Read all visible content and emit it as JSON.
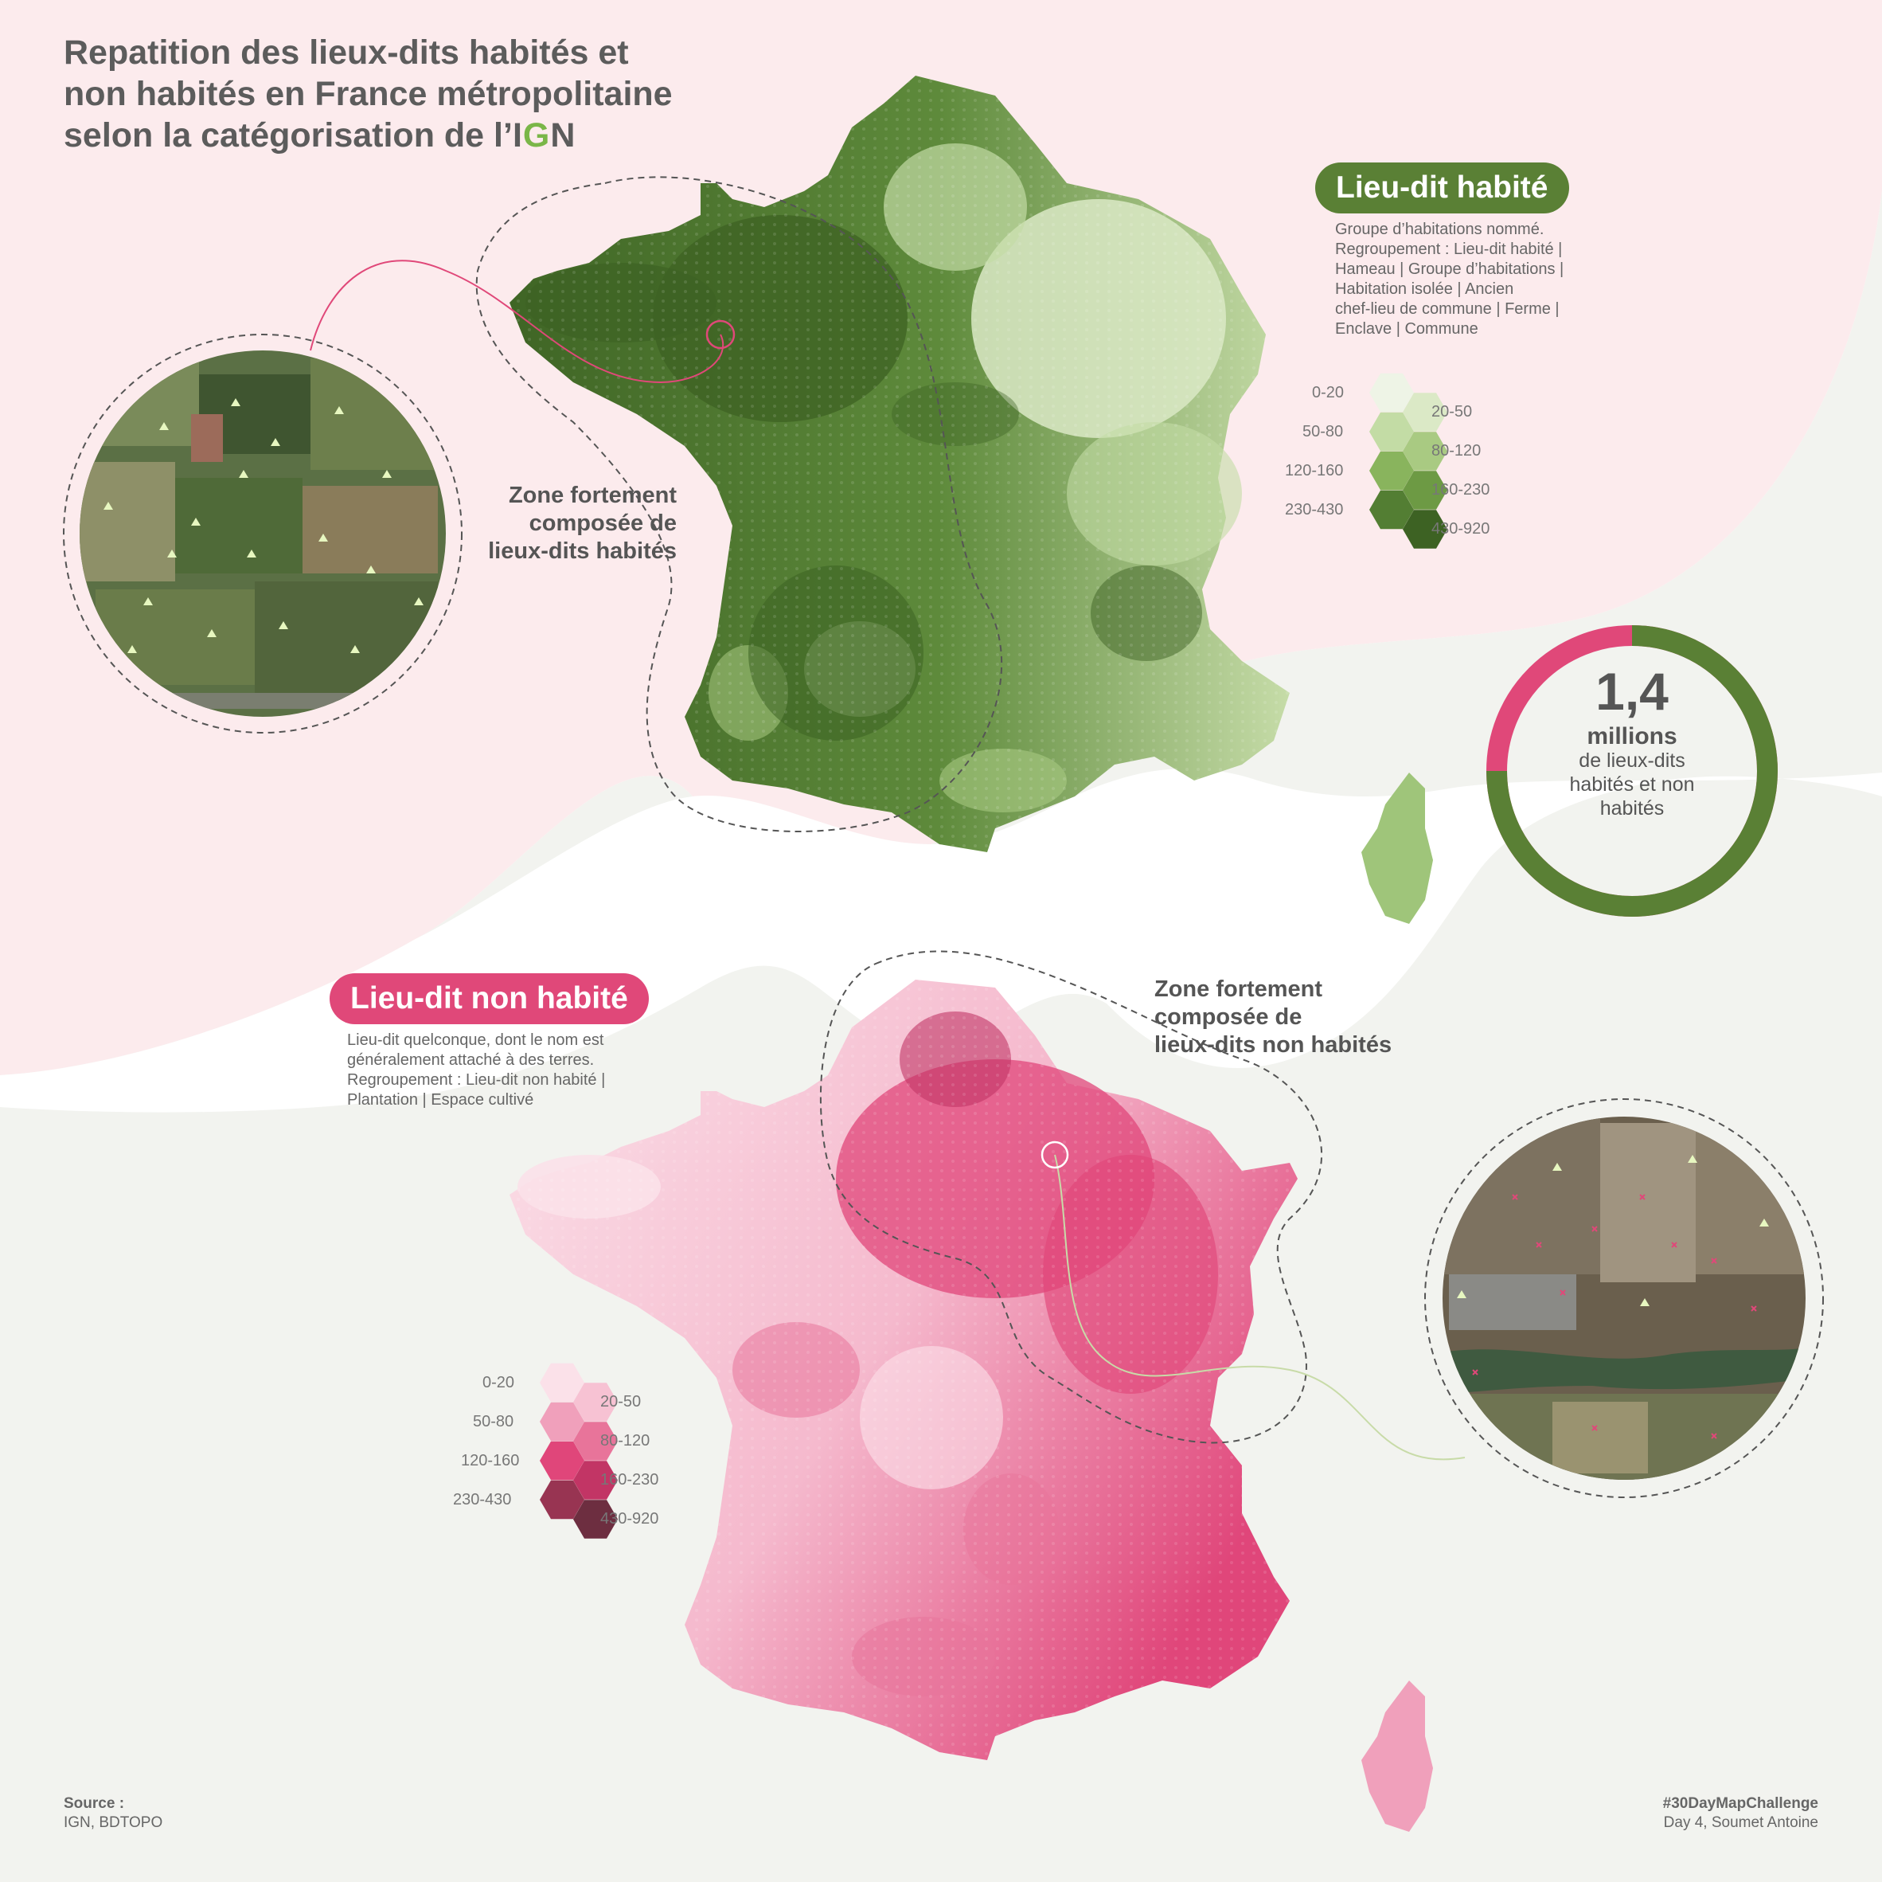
{
  "title": {
    "line1": "Repatition des lieux-dits habités et",
    "line2": "non habités en France métropolitaine",
    "line3": "selon la catégorisation de l’",
    "logo": "IGN"
  },
  "habite": {
    "label": "Lieu-dit habité",
    "description": [
      "Groupe d’habitations nommé.",
      "Regroupement : Lieu-dit habité |",
      "Hameau | Groupe d’habitations |",
      "Habitation isolée | Ancien",
      "chef-lieu de commune | Ferme |",
      "Enclave | Commune"
    ],
    "zone_text": [
      "Zone fortement",
      "composée de",
      "lieux-dits habités"
    ],
    "legend": [
      "0-20",
      "20-50",
      "50-80",
      "80-120",
      "120-160",
      "160-230",
      "230-430",
      "430-920"
    ],
    "colors": [
      "#eef4e6",
      "#dbe9c6",
      "#c3dca5",
      "#a9ca82",
      "#89b45d",
      "#6d9a44",
      "#537e33",
      "#3d6223"
    ]
  },
  "non_habite": {
    "label": "Lieu-dit non habité",
    "description": [
      "Lieu-dit quelconque, dont le nom est",
      "généralement attaché à des terres.",
      "Regroupement : Lieu-dit non habité |",
      "Plantation | Espace cultivé"
    ],
    "zone_text": [
      "Zone fortement",
      "composée de",
      "lieux-dits non habités"
    ],
    "legend": [
      "0-20",
      "20-50",
      "50-80",
      "80-120",
      "120-160",
      "160-230",
      "230-430",
      "430-920"
    ],
    "colors": [
      "#fbe1e9",
      "#f7c2d3",
      "#f0a0bb",
      "#e8749a",
      "#e0467a",
      "#c23565",
      "#983452",
      "#6d2e40"
    ]
  },
  "total": {
    "value": "1,4",
    "unit": "millions",
    "lines": [
      "de lieux-dits",
      "habités et non",
      "habités"
    ],
    "share_habite": 0.75,
    "color_habite": "#5a8035",
    "color_non_habite": "#e04879"
  },
  "source": {
    "label": "Source :",
    "value": "IGN, BDTOPO"
  },
  "credit": {
    "tag": "#30DayMapChallenge",
    "author": "Day 4, Soumet Antoine"
  }
}
